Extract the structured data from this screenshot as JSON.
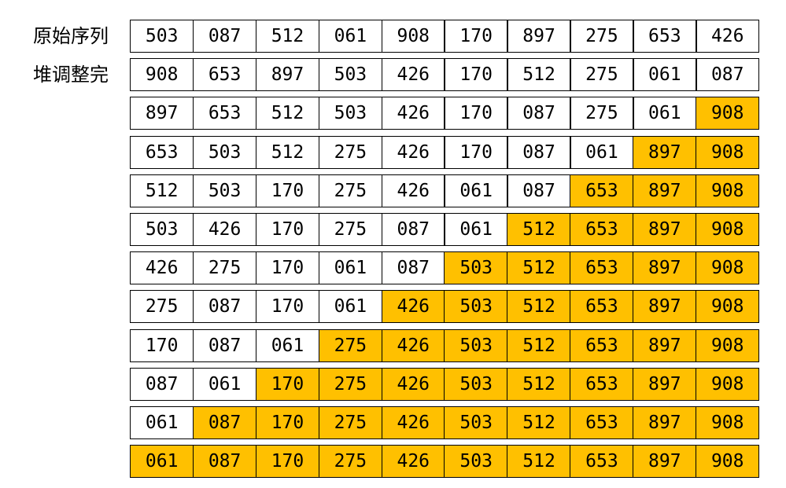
{
  "labels": [
    "原始序列",
    "堆调整完"
  ],
  "colors": {
    "sorted_fill": "#ffc000",
    "unsorted_fill": "#ffffff",
    "border": "#000000"
  },
  "rows": [
    {
      "label_index": 0,
      "sorted_count": 0,
      "values": [
        "503",
        "087",
        "512",
        "061",
        "908",
        "170",
        "897",
        "275",
        "653",
        "426"
      ]
    },
    {
      "label_index": 1,
      "sorted_count": 0,
      "values": [
        "908",
        "653",
        "897",
        "503",
        "426",
        "170",
        "512",
        "275",
        "061",
        "087"
      ]
    },
    {
      "sorted_count": 1,
      "values": [
        "897",
        "653",
        "512",
        "503",
        "426",
        "170",
        "087",
        "275",
        "061",
        "908"
      ]
    },
    {
      "sorted_count": 2,
      "values": [
        "653",
        "503",
        "512",
        "275",
        "426",
        "170",
        "087",
        "061",
        "897",
        "908"
      ]
    },
    {
      "sorted_count": 3,
      "values": [
        "512",
        "503",
        "170",
        "275",
        "426",
        "061",
        "087",
        "653",
        "897",
        "908"
      ]
    },
    {
      "sorted_count": 4,
      "values": [
        "503",
        "426",
        "170",
        "275",
        "087",
        "061",
        "512",
        "653",
        "897",
        "908"
      ]
    },
    {
      "sorted_count": 5,
      "values": [
        "426",
        "275",
        "170",
        "061",
        "087",
        "503",
        "512",
        "653",
        "897",
        "908"
      ]
    },
    {
      "sorted_count": 6,
      "values": [
        "275",
        "087",
        "170",
        "061",
        "426",
        "503",
        "512",
        "653",
        "897",
        "908"
      ]
    },
    {
      "sorted_count": 7,
      "values": [
        "170",
        "087",
        "061",
        "275",
        "426",
        "503",
        "512",
        "653",
        "897",
        "908"
      ]
    },
    {
      "sorted_count": 8,
      "values": [
        "087",
        "061",
        "170",
        "275",
        "426",
        "503",
        "512",
        "653",
        "897",
        "908"
      ]
    },
    {
      "sorted_count": 9,
      "values": [
        "061",
        "087",
        "170",
        "275",
        "426",
        "503",
        "512",
        "653",
        "897",
        "908"
      ]
    },
    {
      "sorted_count": 10,
      "values": [
        "061",
        "087",
        "170",
        "275",
        "426",
        "503",
        "512",
        "653",
        "897",
        "908"
      ]
    }
  ]
}
